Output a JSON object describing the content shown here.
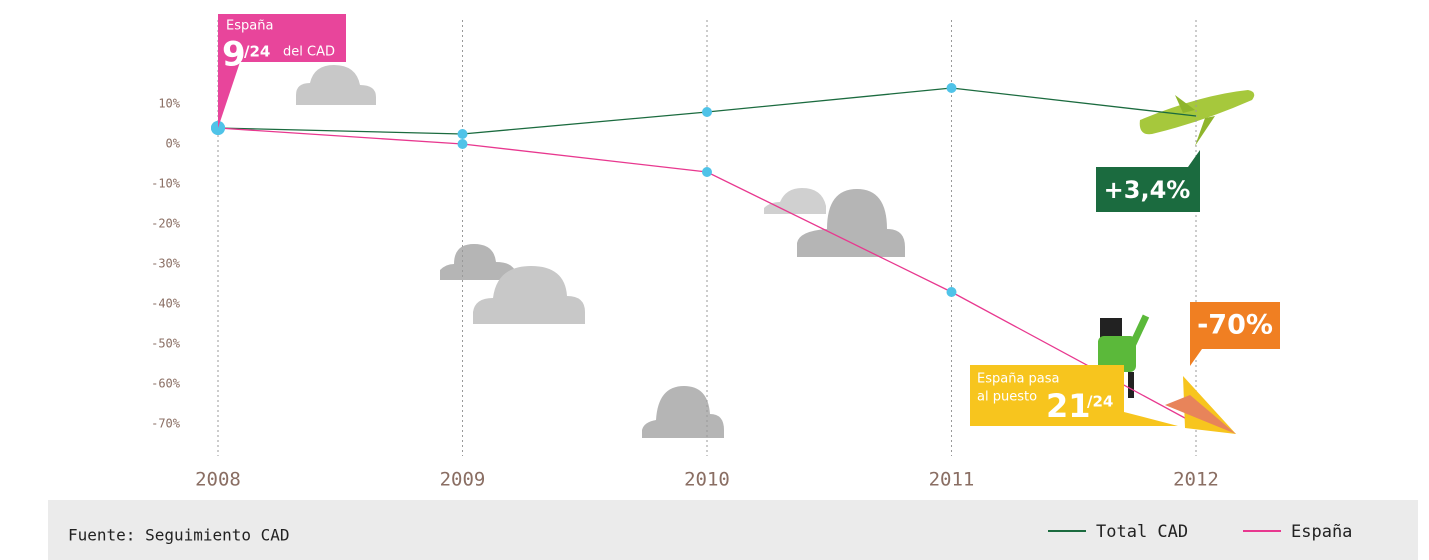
{
  "chart_data": {
    "type": "line",
    "categories": [
      "2008",
      "2009",
      "2010",
      "2011",
      "2012"
    ],
    "series": [
      {
        "name": "Total CAD",
        "color": "#1b6b3f",
        "values": [
          4,
          2.5,
          8,
          14,
          7
        ]
      },
      {
        "name": "España",
        "color": "#e8388f",
        "values": [
          4,
          0,
          -7,
          -37,
          -70
        ]
      }
    ],
    "ylim": [
      -80,
      15
    ],
    "yticks": [
      {
        "value": 10,
        "label": "10%"
      },
      {
        "value": 0,
        "label": "0%"
      },
      {
        "value": -10,
        "label": "-10%"
      },
      {
        "value": -20,
        "label": "-20%"
      },
      {
        "value": -30,
        "label": "-30%"
      },
      {
        "value": -40,
        "label": "-40%"
      },
      {
        "value": -50,
        "label": "-50%"
      },
      {
        "value": -60,
        "label": "-60%"
      },
      {
        "value": -70,
        "label": "-70%"
      }
    ],
    "annotations": [
      "España",
      "9",
      "/24",
      "del CAD",
      "+3,4%",
      "-70%",
      "España pasa",
      "al puesto",
      "21",
      "/24"
    ],
    "source": "Fuente: Seguimiento CAD",
    "point_color": "#4fc3e8"
  }
}
